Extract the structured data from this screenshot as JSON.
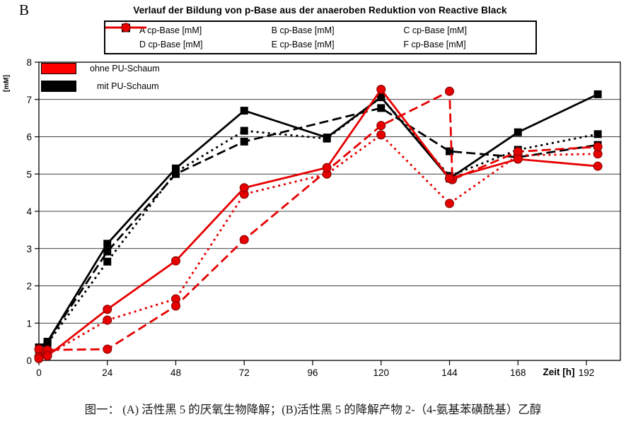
{
  "figure_label": "B",
  "title": "Verlauf der Bildung von p-Base aus der anaeroben Reduktion von Reactive Black",
  "caption": "图一： (A) 活性黑 5 的厌氧生物降解；(B)活性黑 5 的降解产物 2-（4-氨基苯磺酰基）乙醇",
  "inner_legend": [
    {
      "label": "ohne PU-Schaum",
      "color": "#ff0000"
    },
    {
      "label": "mit PU-Schaum",
      "color": "#000000"
    }
  ],
  "chart_data": {
    "type": "line",
    "title": "Verlauf der Bildung von p-Base aus der anaeroben Reduktion von Reactive Black",
    "xlabel": "Zeit [h]",
    "ylabel": "[mM]",
    "x_ticks": [
      0,
      24,
      48,
      72,
      96,
      120,
      144,
      168,
      192
    ],
    "y_ticks": [
      0,
      1,
      2,
      3,
      4,
      5,
      6,
      7,
      8
    ],
    "xlim": [
      0,
      204
    ],
    "ylim": [
      0,
      8
    ],
    "grid": "horizontal",
    "legend_position": "top",
    "series": [
      {
        "name": "A cp-Base [mM]",
        "color": "#000000",
        "line_style": "dotted",
        "marker": "square",
        "group": "mit PU-Schaum",
        "points": [
          [
            0,
            0.3
          ],
          [
            3,
            0.45
          ],
          [
            24,
            2.65
          ],
          [
            48,
            5.05
          ],
          [
            72,
            6.16
          ],
          [
            101,
            5.95
          ],
          [
            120,
            7.06
          ],
          [
            144,
            4.95
          ],
          [
            168,
            5.65
          ],
          [
            196,
            6.07
          ]
        ]
      },
      {
        "name": "B cp-Base [mM]",
        "color": "#000000",
        "line_style": "dashed",
        "marker": "square",
        "group": "mit PU-Schaum",
        "points": [
          [
            0,
            0.3
          ],
          [
            3,
            0.5
          ],
          [
            24,
            2.92
          ],
          [
            48,
            5.0
          ],
          [
            72,
            5.87
          ],
          [
            120,
            6.77
          ],
          [
            144,
            5.61
          ],
          [
            168,
            5.45
          ],
          [
            196,
            5.78
          ]
        ]
      },
      {
        "name": "C cp-Base [mM]",
        "color": "#000000",
        "line_style": "solid",
        "marker": "square",
        "group": "mit PU-Schaum",
        "points": [
          [
            0,
            0.35
          ],
          [
            3,
            0.5
          ],
          [
            24,
            3.13
          ],
          [
            48,
            5.15
          ],
          [
            72,
            6.7
          ],
          [
            101,
            5.98
          ],
          [
            120,
            7.06
          ],
          [
            144,
            4.88
          ],
          [
            168,
            6.12
          ],
          [
            196,
            7.14
          ]
        ]
      },
      {
        "name": "D cp-Base [mM]",
        "color": "#e60000",
        "line_style": "dotted",
        "marker": "circle",
        "group": "ohne PU-Schaum",
        "points": [
          [
            0,
            0.3
          ],
          [
            3,
            0.15
          ],
          [
            24,
            1.08
          ],
          [
            48,
            1.65
          ],
          [
            72,
            4.46
          ],
          [
            101,
            5.0
          ],
          [
            120,
            6.05
          ],
          [
            144,
            4.21
          ],
          [
            168,
            5.5
          ],
          [
            196,
            5.54
          ]
        ]
      },
      {
        "name": "E cp-Base [mM]",
        "color": "#e60000",
        "line_style": "solid",
        "marker": "circle",
        "group": "ohne PU-Schaum",
        "points": [
          [
            0,
            0.05
          ],
          [
            3,
            0.12
          ],
          [
            24,
            1.37
          ],
          [
            48,
            2.67
          ],
          [
            72,
            4.63
          ],
          [
            101,
            5.17
          ],
          [
            120,
            7.27
          ],
          [
            144,
            4.88
          ],
          [
            168,
            5.4
          ],
          [
            196,
            5.21
          ]
        ]
      },
      {
        "name": "F cp-Base [mM]",
        "color": "#e60000",
        "line_style": "dashed",
        "marker": "circle",
        "group": "ohne PU-Schaum",
        "points": [
          [
            0,
            0.1
          ],
          [
            3,
            0.28
          ],
          [
            24,
            0.3
          ],
          [
            48,
            1.46
          ],
          [
            72,
            3.24
          ],
          [
            120,
            6.3
          ],
          [
            144,
            7.22
          ],
          [
            145,
            4.85
          ],
          [
            168,
            5.6
          ],
          [
            196,
            5.73
          ]
        ]
      }
    ]
  }
}
